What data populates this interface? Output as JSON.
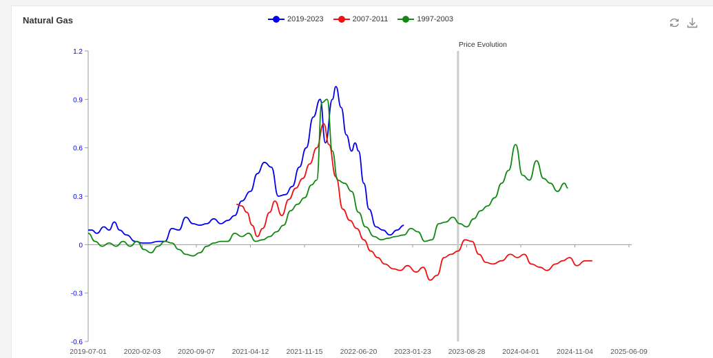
{
  "card": {
    "title": "Natural Gas"
  },
  "toolbar": {
    "icons": [
      "refresh-icon",
      "download-icon"
    ]
  },
  "colors": {
    "blue": "#0000ee",
    "red": "#ee1111",
    "green": "#118811",
    "axis": "#999999",
    "marker": "#cccccc"
  },
  "chart_data": {
    "type": "line",
    "title": "Natural Gas",
    "xlabel": "",
    "ylabel": "",
    "x_ticks": [
      "2019-07-01",
      "2020-02-03",
      "2020-09-07",
      "2021-04-12",
      "2021-11-15",
      "2022-06-20",
      "2023-01-23",
      "2023-08-28",
      "2024-04-01",
      "2024-11-04",
      "2025-06-09"
    ],
    "x_range": [
      "2019-07-01",
      "2025-06-09"
    ],
    "ylim": [
      -0.6,
      1.2
    ],
    "y_ticks": [
      -0.6,
      -0.3,
      0,
      0.3,
      0.6,
      0.9,
      1.2
    ],
    "grid": false,
    "legend_position": "top-center",
    "annotation": {
      "label": "Price Evolution",
      "x": "2023-07-24"
    },
    "series": [
      {
        "name": "2019-2023",
        "color": "#0000ee",
        "points": [
          [
            "2019-07-01",
            0.09
          ],
          [
            "2019-07-15",
            0.09
          ],
          [
            "2019-08-05",
            0.07
          ],
          [
            "2019-09-02",
            0.11
          ],
          [
            "2019-09-23",
            0.09
          ],
          [
            "2019-10-14",
            0.14
          ],
          [
            "2019-11-04",
            0.09
          ],
          [
            "2019-12-02",
            0.06
          ],
          [
            "2020-01-06",
            0.02
          ],
          [
            "2020-02-03",
            0.01
          ],
          [
            "2020-03-02",
            0.01
          ],
          [
            "2020-04-06",
            0.02
          ],
          [
            "2020-05-04",
            0.02
          ],
          [
            "2020-06-01",
            0.1
          ],
          [
            "2020-06-29",
            0.09
          ],
          [
            "2020-07-27",
            0.17
          ],
          [
            "2020-08-24",
            0.13
          ],
          [
            "2020-09-21",
            0.12
          ],
          [
            "2020-10-19",
            0.13
          ],
          [
            "2020-11-16",
            0.16
          ],
          [
            "2020-12-14",
            0.13
          ],
          [
            "2021-01-11",
            0.15
          ],
          [
            "2021-02-08",
            0.18
          ],
          [
            "2021-03-08",
            0.27
          ],
          [
            "2021-04-12",
            0.33
          ],
          [
            "2021-05-10",
            0.44
          ],
          [
            "2021-06-07",
            0.51
          ],
          [
            "2021-07-05",
            0.48
          ],
          [
            "2021-08-02",
            0.3
          ],
          [
            "2021-08-30",
            0.31
          ],
          [
            "2021-09-27",
            0.36
          ],
          [
            "2021-10-25",
            0.48
          ],
          [
            "2021-11-22",
            0.6
          ],
          [
            "2021-12-20",
            0.79
          ],
          [
            "2022-01-17",
            0.9
          ],
          [
            "2022-02-07",
            0.63
          ],
          [
            "2022-03-07",
            0.9
          ],
          [
            "2022-03-21",
            0.98
          ],
          [
            "2022-04-11",
            0.85
          ],
          [
            "2022-05-02",
            0.68
          ],
          [
            "2022-05-23",
            0.58
          ],
          [
            "2022-06-06",
            0.63
          ],
          [
            "2022-06-20",
            0.58
          ],
          [
            "2022-07-11",
            0.38
          ],
          [
            "2022-08-01",
            0.22
          ],
          [
            "2022-08-29",
            0.11
          ],
          [
            "2022-09-26",
            0.09
          ],
          [
            "2022-10-24",
            0.06
          ],
          [
            "2022-11-21",
            0.09
          ],
          [
            "2022-12-19",
            0.12
          ]
        ]
      },
      {
        "name": "2007-2011",
        "color": "#ee1111",
        "points": [
          [
            "2021-02-15",
            0.25
          ],
          [
            "2021-03-08",
            0.24
          ],
          [
            "2021-03-29",
            0.2
          ],
          [
            "2021-04-19",
            0.12
          ],
          [
            "2021-05-10",
            0.05
          ],
          [
            "2021-05-31",
            0.1
          ],
          [
            "2021-06-28",
            0.2
          ],
          [
            "2021-07-19",
            0.27
          ],
          [
            "2021-08-16",
            0.18
          ],
          [
            "2021-09-13",
            0.28
          ],
          [
            "2021-10-11",
            0.35
          ],
          [
            "2021-11-08",
            0.41
          ],
          [
            "2021-12-06",
            0.5
          ],
          [
            "2022-01-03",
            0.6
          ],
          [
            "2022-01-31",
            0.75
          ],
          [
            "2022-02-21",
            0.62
          ],
          [
            "2022-03-21",
            0.42
          ],
          [
            "2022-04-18",
            0.22
          ],
          [
            "2022-05-16",
            0.15
          ],
          [
            "2022-06-13",
            0.1
          ],
          [
            "2022-07-11",
            0.03
          ],
          [
            "2022-08-08",
            -0.04
          ],
          [
            "2022-09-05",
            -0.08
          ],
          [
            "2022-10-03",
            -0.12
          ],
          [
            "2022-11-07",
            -0.15
          ],
          [
            "2022-12-05",
            -0.16
          ],
          [
            "2023-01-02",
            -0.13
          ],
          [
            "2023-02-06",
            -0.17
          ],
          [
            "2023-03-06",
            -0.14
          ],
          [
            "2023-04-03",
            -0.22
          ],
          [
            "2023-05-01",
            -0.19
          ],
          [
            "2023-05-29",
            -0.08
          ],
          [
            "2023-06-26",
            -0.06
          ],
          [
            "2023-07-24",
            -0.04
          ],
          [
            "2023-08-21",
            0.03
          ],
          [
            "2023-09-18",
            0.02
          ],
          [
            "2023-10-16",
            -0.06
          ],
          [
            "2023-11-13",
            -0.11
          ],
          [
            "2023-12-11",
            -0.12
          ],
          [
            "2024-01-15",
            -0.1
          ],
          [
            "2024-02-19",
            -0.06
          ],
          [
            "2024-03-18",
            -0.08
          ],
          [
            "2024-04-15",
            -0.06
          ],
          [
            "2024-05-13",
            -0.12
          ],
          [
            "2024-06-17",
            -0.14
          ],
          [
            "2024-07-15",
            -0.16
          ],
          [
            "2024-08-19",
            -0.12
          ],
          [
            "2024-09-16",
            -0.1
          ],
          [
            "2024-10-14",
            -0.08
          ],
          [
            "2024-11-11",
            -0.13
          ],
          [
            "2024-12-16",
            -0.1
          ],
          [
            "2025-01-13",
            -0.1
          ]
        ]
      },
      {
        "name": "1997-2003",
        "color": "#118811",
        "points": [
          [
            "2019-07-01",
            0.07
          ],
          [
            "2019-07-29",
            0.02
          ],
          [
            "2019-08-26",
            -0.01
          ],
          [
            "2019-09-23",
            0.01
          ],
          [
            "2019-10-21",
            -0.01
          ],
          [
            "2019-11-18",
            0.02
          ],
          [
            "2019-12-16",
            -0.01
          ],
          [
            "2020-01-13",
            0.02
          ],
          [
            "2020-02-10",
            -0.03
          ],
          [
            "2020-03-09",
            -0.05
          ],
          [
            "2020-04-06",
            -0.01
          ],
          [
            "2020-05-04",
            0.02
          ],
          [
            "2020-06-01",
            0.01
          ],
          [
            "2020-06-29",
            -0.03
          ],
          [
            "2020-07-27",
            -0.06
          ],
          [
            "2020-08-24",
            -0.07
          ],
          [
            "2020-09-21",
            -0.05
          ],
          [
            "2020-10-19",
            -0.01
          ],
          [
            "2020-11-16",
            0.01
          ],
          [
            "2020-12-14",
            0.02
          ],
          [
            "2021-01-11",
            0.02
          ],
          [
            "2021-02-08",
            0.07
          ],
          [
            "2021-03-08",
            0.05
          ],
          [
            "2021-04-05",
            0.07
          ],
          [
            "2021-05-03",
            0.02
          ],
          [
            "2021-05-31",
            0.03
          ],
          [
            "2021-06-28",
            0.05
          ],
          [
            "2021-07-26",
            0.08
          ],
          [
            "2021-08-23",
            0.12
          ],
          [
            "2021-09-20",
            0.21
          ],
          [
            "2021-10-18",
            0.25
          ],
          [
            "2021-11-15",
            0.29
          ],
          [
            "2021-12-13",
            0.37
          ],
          [
            "2022-01-03",
            0.4
          ],
          [
            "2022-01-24",
            0.88
          ],
          [
            "2022-02-14",
            0.9
          ],
          [
            "2022-03-07",
            0.58
          ],
          [
            "2022-03-28",
            0.4
          ],
          [
            "2022-04-25",
            0.38
          ],
          [
            "2022-05-23",
            0.33
          ],
          [
            "2022-06-20",
            0.2
          ],
          [
            "2022-07-18",
            0.11
          ],
          [
            "2022-08-22",
            0.05
          ],
          [
            "2022-09-19",
            0.03
          ],
          [
            "2022-10-17",
            0.04
          ],
          [
            "2022-11-14",
            0.05
          ],
          [
            "2022-12-19",
            0.06
          ],
          [
            "2023-01-16",
            0.1
          ],
          [
            "2023-02-13",
            0.08
          ],
          [
            "2023-03-13",
            0.02
          ],
          [
            "2023-04-10",
            0.03
          ],
          [
            "2023-05-08",
            0.13
          ],
          [
            "2023-06-05",
            0.14
          ],
          [
            "2023-07-03",
            0.17
          ],
          [
            "2023-07-31",
            0.13
          ],
          [
            "2023-08-28",
            0.11
          ],
          [
            "2023-09-25",
            0.16
          ],
          [
            "2023-10-23",
            0.21
          ],
          [
            "2023-11-20",
            0.24
          ],
          [
            "2023-12-18",
            0.29
          ],
          [
            "2024-01-15",
            0.38
          ],
          [
            "2024-02-12",
            0.46
          ],
          [
            "2024-03-11",
            0.62
          ],
          [
            "2024-04-08",
            0.43
          ],
          [
            "2024-05-06",
            0.4
          ],
          [
            "2024-06-03",
            0.52
          ],
          [
            "2024-07-01",
            0.41
          ],
          [
            "2024-07-29",
            0.38
          ],
          [
            "2024-08-26",
            0.33
          ],
          [
            "2024-09-23",
            0.38
          ],
          [
            "2024-10-07",
            0.35
          ]
        ]
      }
    ]
  }
}
